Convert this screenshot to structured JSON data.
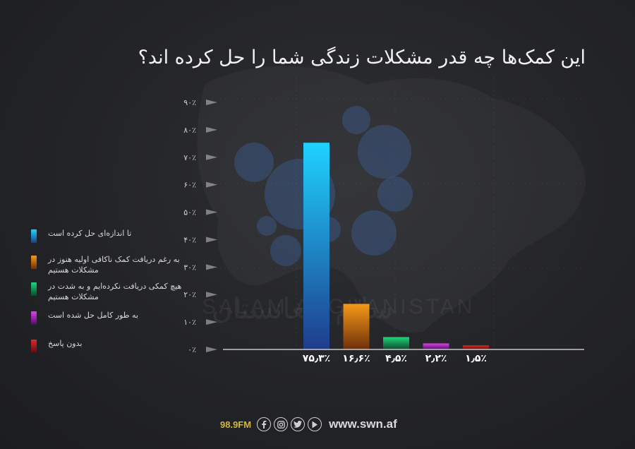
{
  "chart_data": {
    "type": "bar",
    "title": "این کمک‌ها چه قدر مشکلات زندگی شما را حل کرده اند؟",
    "categories": [
      "تا اندازه‌ای حل کرده است",
      "به رغم دریافت کمک ناکافی اولیه هنوز در مشکلات هستیم",
      "هیچ کمکی دریافت نکرده‌ایم و به شدت در مشکلات هستیم",
      "به طور کامل حل شده است",
      "بدون پاسخ"
    ],
    "values": [
      75.3,
      16.6,
      4.5,
      2.2,
      1.5
    ],
    "value_labels": [
      "۷۵٫۳٪",
      "۱۶٫۶٪",
      "۴٫۵٪",
      "۲٫۲٪",
      "۱٫۵٪"
    ],
    "ylim": [
      0,
      90
    ],
    "yticks": [
      0,
      10,
      20,
      30,
      40,
      50,
      60,
      70,
      80,
      90
    ],
    "ytick_labels": [
      "۰٪",
      "۱۰٪",
      "۲۰٪",
      "۳۰٪",
      "۴۰٪",
      "۵۰٪",
      "۶۰٪",
      "۷۰٪",
      "۸۰٪",
      "۹۰٪"
    ],
    "colors": [
      [
        "#1fd3ff",
        "#1e3c8c"
      ],
      [
        "#f59a18",
        "#6e2f0a"
      ],
      [
        "#20d67b",
        "#0c4a2a"
      ],
      [
        "#e040e8",
        "#4a0f66"
      ],
      [
        "#e02a2a",
        "#5a0d0d"
      ]
    ],
    "grid": false,
    "legend": "left"
  },
  "watermark": {
    "fa": "سلام افغانستان",
    "en": "SALAM AFGHANISTAN"
  },
  "footer": {
    "frequency": "98.9FM",
    "website": "www.swn.af",
    "icons": [
      "facebook-icon",
      "instagram-icon",
      "twitter-icon",
      "youtube-icon"
    ]
  }
}
